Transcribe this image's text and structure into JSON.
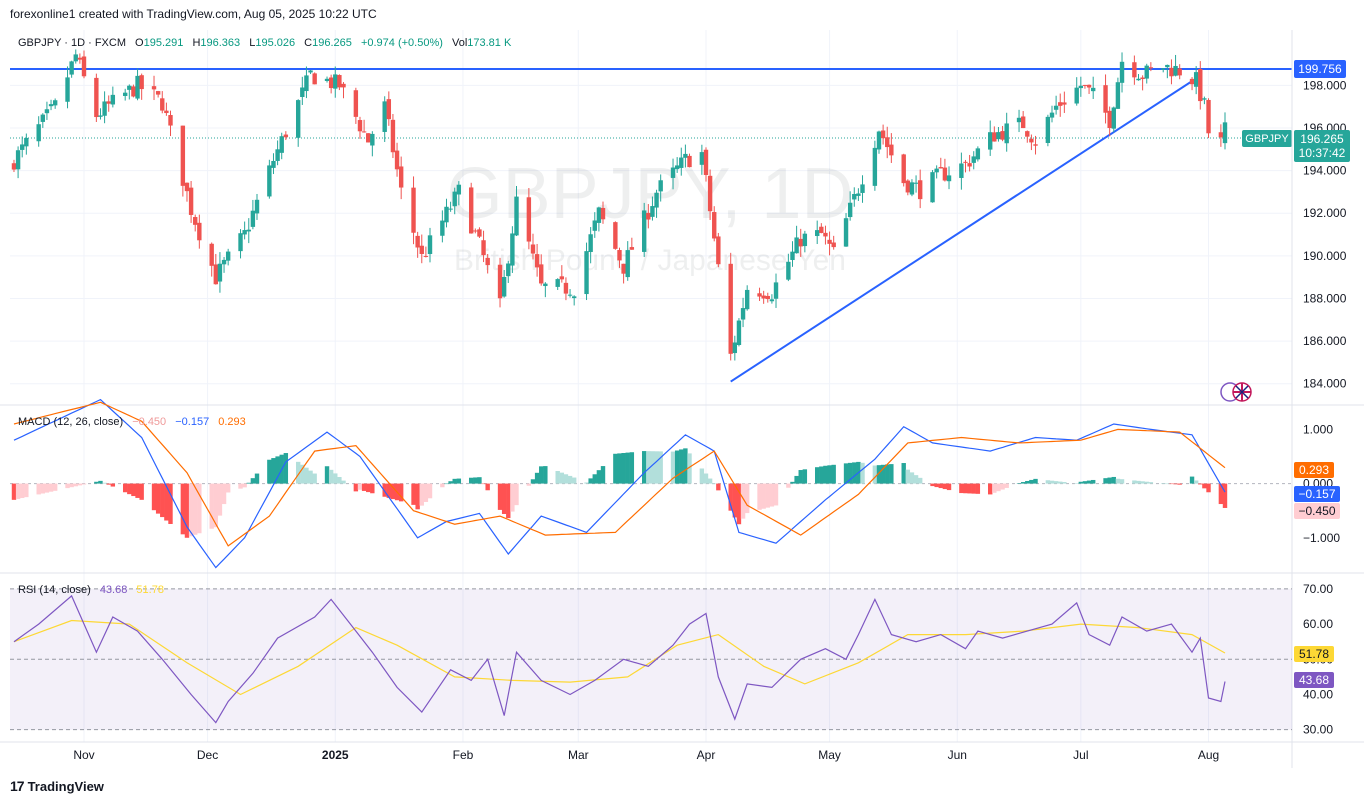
{
  "header": {
    "text": "forexonline1 created with TradingView.com, Aug 05, 2025 10:22 UTC"
  },
  "footer": {
    "brand": "TradingView",
    "logo": "17"
  },
  "watermark": {
    "symbol": "GBPJPY, 1D",
    "name": "British Pound / Japanese Yen"
  },
  "legend": {
    "symbol": "GBPJPY · 1D · FXCM",
    "o_label": "O",
    "o": "195.291",
    "h_label": "H",
    "h": "196.363",
    "l_label": "L",
    "l": "195.026",
    "c_label": "C",
    "c": "196.265",
    "chg": "+0.974 (+0.50%)",
    "vol_label": "Vol",
    "vol": "173.81 K"
  },
  "colors": {
    "up": "#26a69a",
    "down": "#ef5350",
    "line": "#2962ff",
    "macd_signal": "#ff6d00",
    "rsi": "#7e57c2",
    "rsi_ma": "#fdd835"
  },
  "price_badges": {
    "level": "199.756",
    "symbol": "GBPJPY",
    "last": "196.265",
    "countdown": "10:37:42"
  },
  "macd_legend": {
    "label": "MACD (12, 26, close)",
    "hist": "−0.450",
    "macd": "−0.157",
    "signal": "0.293"
  },
  "rsi_legend": {
    "label": "RSI (14, close)",
    "rsi": "43.68",
    "ma": "51.78"
  },
  "chart_data": {
    "type": "candlestick",
    "title": "GBPJPY · 1D · FXCM",
    "x_ticks": [
      "Nov",
      "Dec",
      "2025",
      "Feb",
      "Mar",
      "Apr",
      "May",
      "Jun",
      "Jul",
      "Aug"
    ],
    "price_ticks": [
      "198.000",
      "196.000",
      "194.000",
      "192.000",
      "190.000",
      "188.000",
      "186.000",
      "184.000"
    ],
    "price_ylim": [
      183.0,
      200.6
    ],
    "horizontal_line": 199.756,
    "trendline": [
      {
        "date": "2025-04-07",
        "price": 184.1
      },
      {
        "date": "2025-07-28",
        "price": 198.2
      }
    ],
    "close_path": [
      {
        "date": "2024-10-15",
        "close": 194.5
      },
      {
        "date": "2024-10-25",
        "close": 197.0
      },
      {
        "date": "2024-10-30",
        "close": 199.4
      },
      {
        "date": "2024-11-04",
        "close": 196.6
      },
      {
        "date": "2024-11-14",
        "close": 198.0
      },
      {
        "date": "2024-11-20",
        "close": 197.2
      },
      {
        "date": "2024-11-27",
        "close": 192.2
      },
      {
        "date": "2024-12-03",
        "close": 189.0
      },
      {
        "date": "2024-12-10",
        "close": 191.0
      },
      {
        "date": "2024-12-17",
        "close": 194.5
      },
      {
        "date": "2024-12-26",
        "close": 198.5
      },
      {
        "date": "2025-01-02",
        "close": 198.0
      },
      {
        "date": "2025-01-09",
        "close": 195.4
      },
      {
        "date": "2025-01-13",
        "close": 197.0
      },
      {
        "date": "2025-01-17",
        "close": 193.0
      },
      {
        "date": "2025-01-22",
        "close": 189.9
      },
      {
        "date": "2025-01-31",
        "close": 193.0
      },
      {
        "date": "2025-02-05",
        "close": 190.5
      },
      {
        "date": "2025-02-10",
        "close": 187.6
      },
      {
        "date": "2025-02-14",
        "close": 192.5
      },
      {
        "date": "2025-02-20",
        "close": 188.5
      },
      {
        "date": "2025-02-28",
        "close": 188.5
      },
      {
        "date": "2025-03-06",
        "close": 192.0
      },
      {
        "date": "2025-03-12",
        "close": 189.5
      },
      {
        "date": "2025-03-20",
        "close": 193.0
      },
      {
        "date": "2025-03-27",
        "close": 194.5
      },
      {
        "date": "2025-03-31",
        "close": 194.8
      },
      {
        "date": "2025-04-03",
        "close": 190.8
      },
      {
        "date": "2025-04-07",
        "close": 185.3
      },
      {
        "date": "2025-04-11",
        "close": 188.5
      },
      {
        "date": "2025-04-17",
        "close": 188.3
      },
      {
        "date": "2025-04-24",
        "close": 190.8
      },
      {
        "date": "2025-04-29",
        "close": 191.0
      },
      {
        "date": "2025-05-02",
        "close": 190.1
      },
      {
        "date": "2025-05-08",
        "close": 193.2
      },
      {
        "date": "2025-05-13",
        "close": 196.0
      },
      {
        "date": "2025-05-19",
        "close": 193.5
      },
      {
        "date": "2025-05-23",
        "close": 193.1
      },
      {
        "date": "2025-05-28",
        "close": 193.8
      },
      {
        "date": "2025-06-03",
        "close": 194.3
      },
      {
        "date": "2025-06-10",
        "close": 195.7
      },
      {
        "date": "2025-06-17",
        "close": 196.2
      },
      {
        "date": "2025-06-20",
        "close": 195.4
      },
      {
        "date": "2025-06-25",
        "close": 197.0
      },
      {
        "date": "2025-07-01",
        "close": 198.0
      },
      {
        "date": "2025-07-04",
        "close": 197.5
      },
      {
        "date": "2025-07-08",
        "close": 196.4
      },
      {
        "date": "2025-07-11",
        "close": 199.2
      },
      {
        "date": "2025-07-16",
        "close": 198.5
      },
      {
        "date": "2025-07-21",
        "close": 198.9
      },
      {
        "date": "2025-07-25",
        "close": 198.7
      },
      {
        "date": "2025-07-29",
        "close": 198.2
      },
      {
        "date": "2025-07-31",
        "close": 197.0
      },
      {
        "date": "2025-08-01",
        "close": 195.8
      },
      {
        "date": "2025-08-04",
        "close": 195.3
      },
      {
        "date": "2025-08-05",
        "close": 196.265
      }
    ],
    "macd": {
      "ticks": [
        "1.000",
        "0.000",
        "−1.000"
      ],
      "ylim": [
        -1.65,
        1.45
      ],
      "macd_line": [
        {
          "date": "2024-10-15",
          "value": 0.8
        },
        {
          "date": "2024-11-05",
          "value": 1.55
        },
        {
          "date": "2024-11-15",
          "value": 0.85
        },
        {
          "date": "2024-11-26",
          "value": -0.8
        },
        {
          "date": "2024-12-03",
          "value": -1.55
        },
        {
          "date": "2024-12-10",
          "value": -1.0
        },
        {
          "date": "2024-12-20",
          "value": 0.4
        },
        {
          "date": "2024-12-30",
          "value": 0.95
        },
        {
          "date": "2025-01-07",
          "value": 0.5
        },
        {
          "date": "2025-01-21",
          "value": -1.0
        },
        {
          "date": "2025-01-28",
          "value": -0.7
        },
        {
          "date": "2025-02-05",
          "value": -0.55
        },
        {
          "date": "2025-02-12",
          "value": -1.3
        },
        {
          "date": "2025-02-20",
          "value": -0.6
        },
        {
          "date": "2025-03-03",
          "value": -0.9
        },
        {
          "date": "2025-03-17",
          "value": 0.2
        },
        {
          "date": "2025-03-27",
          "value": 0.9
        },
        {
          "date": "2025-04-03",
          "value": 0.6
        },
        {
          "date": "2025-04-09",
          "value": -0.9
        },
        {
          "date": "2025-04-18",
          "value": -1.1
        },
        {
          "date": "2025-04-30",
          "value": -0.3
        },
        {
          "date": "2025-05-12",
          "value": 0.45
        },
        {
          "date": "2025-05-19",
          "value": 1.05
        },
        {
          "date": "2025-05-26",
          "value": 0.75
        },
        {
          "date": "2025-06-09",
          "value": 0.6
        },
        {
          "date": "2025-06-20",
          "value": 0.85
        },
        {
          "date": "2025-06-30",
          "value": 0.8
        },
        {
          "date": "2025-07-09",
          "value": 1.1
        },
        {
          "date": "2025-07-18",
          "value": 1.0
        },
        {
          "date": "2025-07-28",
          "value": 0.9
        },
        {
          "date": "2025-08-05",
          "value": -0.157
        }
      ],
      "signal_line": [
        {
          "date": "2024-10-15",
          "value": 1.1
        },
        {
          "date": "2024-11-05",
          "value": 1.5
        },
        {
          "date": "2024-11-15",
          "value": 1.15
        },
        {
          "date": "2024-11-26",
          "value": 0.2
        },
        {
          "date": "2024-12-06",
          "value": -1.15
        },
        {
          "date": "2024-12-16",
          "value": -0.6
        },
        {
          "date": "2024-12-27",
          "value": 0.6
        },
        {
          "date": "2025-01-06",
          "value": 0.7
        },
        {
          "date": "2025-01-20",
          "value": -0.5
        },
        {
          "date": "2025-01-30",
          "value": -0.75
        },
        {
          "date": "2025-02-10",
          "value": -0.6
        },
        {
          "date": "2025-02-21",
          "value": -0.95
        },
        {
          "date": "2025-03-10",
          "value": -0.9
        },
        {
          "date": "2025-03-24",
          "value": 0.1
        },
        {
          "date": "2025-04-03",
          "value": 0.6
        },
        {
          "date": "2025-04-11",
          "value": -0.4
        },
        {
          "date": "2025-04-24",
          "value": -0.95
        },
        {
          "date": "2025-05-08",
          "value": -0.2
        },
        {
          "date": "2025-05-20",
          "value": 0.75
        },
        {
          "date": "2025-06-02",
          "value": 0.85
        },
        {
          "date": "2025-06-16",
          "value": 0.75
        },
        {
          "date": "2025-07-01",
          "value": 0.8
        },
        {
          "date": "2025-07-10",
          "value": 1.0
        },
        {
          "date": "2025-07-25",
          "value": 0.95
        },
        {
          "date": "2025-08-05",
          "value": 0.293
        }
      ]
    },
    "rsi": {
      "ticks": [
        "70.00",
        "60.00",
        "50.00",
        "40.00",
        "30.00"
      ],
      "ylim": [
        26.5,
        74.5
      ],
      "bands": [
        30,
        50,
        70
      ],
      "rsi_line": [
        {
          "date": "2024-10-15",
          "value": 55
        },
        {
          "date": "2024-10-21",
          "value": 60
        },
        {
          "date": "2024-10-29",
          "value": 68
        },
        {
          "date": "2024-11-04",
          "value": 52
        },
        {
          "date": "2024-11-08",
          "value": 62
        },
        {
          "date": "2024-11-14",
          "value": 58
        },
        {
          "date": "2024-11-20",
          "value": 50
        },
        {
          "date": "2024-11-27",
          "value": 40
        },
        {
          "date": "2024-12-03",
          "value": 32
        },
        {
          "date": "2024-12-06",
          "value": 38
        },
        {
          "date": "2024-12-12",
          "value": 46
        },
        {
          "date": "2024-12-18",
          "value": 56
        },
        {
          "date": "2024-12-27",
          "value": 62
        },
        {
          "date": "2024-12-31",
          "value": 67
        },
        {
          "date": "2025-01-06",
          "value": 58
        },
        {
          "date": "2025-01-10",
          "value": 52
        },
        {
          "date": "2025-01-16",
          "value": 42
        },
        {
          "date": "2025-01-22",
          "value": 35
        },
        {
          "date": "2025-01-29",
          "value": 47
        },
        {
          "date": "2025-02-03",
          "value": 44
        },
        {
          "date": "2025-02-07",
          "value": 50
        },
        {
          "date": "2025-02-11",
          "value": 34
        },
        {
          "date": "2025-02-14",
          "value": 52
        },
        {
          "date": "2025-02-20",
          "value": 44
        },
        {
          "date": "2025-02-27",
          "value": 40
        },
        {
          "date": "2025-03-05",
          "value": 44
        },
        {
          "date": "2025-03-12",
          "value": 50
        },
        {
          "date": "2025-03-18",
          "value": 48
        },
        {
          "date": "2025-03-24",
          "value": 54
        },
        {
          "date": "2025-03-28",
          "value": 60
        },
        {
          "date": "2025-04-01",
          "value": 63
        },
        {
          "date": "2025-04-04",
          "value": 45
        },
        {
          "date": "2025-04-08",
          "value": 33
        },
        {
          "date": "2025-04-11",
          "value": 43
        },
        {
          "date": "2025-04-17",
          "value": 42
        },
        {
          "date": "2025-04-24",
          "value": 50
        },
        {
          "date": "2025-04-30",
          "value": 53
        },
        {
          "date": "2025-05-05",
          "value": 50
        },
        {
          "date": "2025-05-08",
          "value": 57
        },
        {
          "date": "2025-05-12",
          "value": 67
        },
        {
          "date": "2025-05-16",
          "value": 57
        },
        {
          "date": "2025-05-22",
          "value": 55
        },
        {
          "date": "2025-05-28",
          "value": 57
        },
        {
          "date": "2025-06-03",
          "value": 53
        },
        {
          "date": "2025-06-06",
          "value": 58
        },
        {
          "date": "2025-06-12",
          "value": 56
        },
        {
          "date": "2025-06-18",
          "value": 58
        },
        {
          "date": "2025-06-24",
          "value": 60
        },
        {
          "date": "2025-06-30",
          "value": 66
        },
        {
          "date": "2025-07-03",
          "value": 57
        },
        {
          "date": "2025-07-08",
          "value": 54
        },
        {
          "date": "2025-07-11",
          "value": 62
        },
        {
          "date": "2025-07-17",
          "value": 58
        },
        {
          "date": "2025-07-23",
          "value": 60
        },
        {
          "date": "2025-07-28",
          "value": 52
        },
        {
          "date": "2025-07-30",
          "value": 56
        },
        {
          "date": "2025-08-01",
          "value": 39
        },
        {
          "date": "2025-08-04",
          "value": 38
        },
        {
          "date": "2025-08-05",
          "value": 43.68
        }
      ],
      "ma_line": [
        {
          "date": "2024-10-15",
          "value": 55
        },
        {
          "date": "2024-10-29",
          "value": 61
        },
        {
          "date": "2024-11-12",
          "value": 60
        },
        {
          "date": "2024-11-26",
          "value": 49
        },
        {
          "date": "2024-12-09",
          "value": 40
        },
        {
          "date": "2024-12-23",
          "value": 48
        },
        {
          "date": "2025-01-06",
          "value": 59
        },
        {
          "date": "2025-01-16",
          "value": 54
        },
        {
          "date": "2025-01-30",
          "value": 45
        },
        {
          "date": "2025-02-13",
          "value": 44
        },
        {
          "date": "2025-02-27",
          "value": 43.5
        },
        {
          "date": "2025-03-13",
          "value": 45
        },
        {
          "date": "2025-03-25",
          "value": 54
        },
        {
          "date": "2025-04-04",
          "value": 57
        },
        {
          "date": "2025-04-15",
          "value": 48
        },
        {
          "date": "2025-04-25",
          "value": 43
        },
        {
          "date": "2025-05-08",
          "value": 49
        },
        {
          "date": "2025-05-20",
          "value": 57
        },
        {
          "date": "2025-06-03",
          "value": 57
        },
        {
          "date": "2025-06-17",
          "value": 58
        },
        {
          "date": "2025-07-01",
          "value": 60
        },
        {
          "date": "2025-07-15",
          "value": 59
        },
        {
          "date": "2025-07-28",
          "value": 57
        },
        {
          "date": "2025-08-05",
          "value": 51.78
        }
      ]
    }
  }
}
